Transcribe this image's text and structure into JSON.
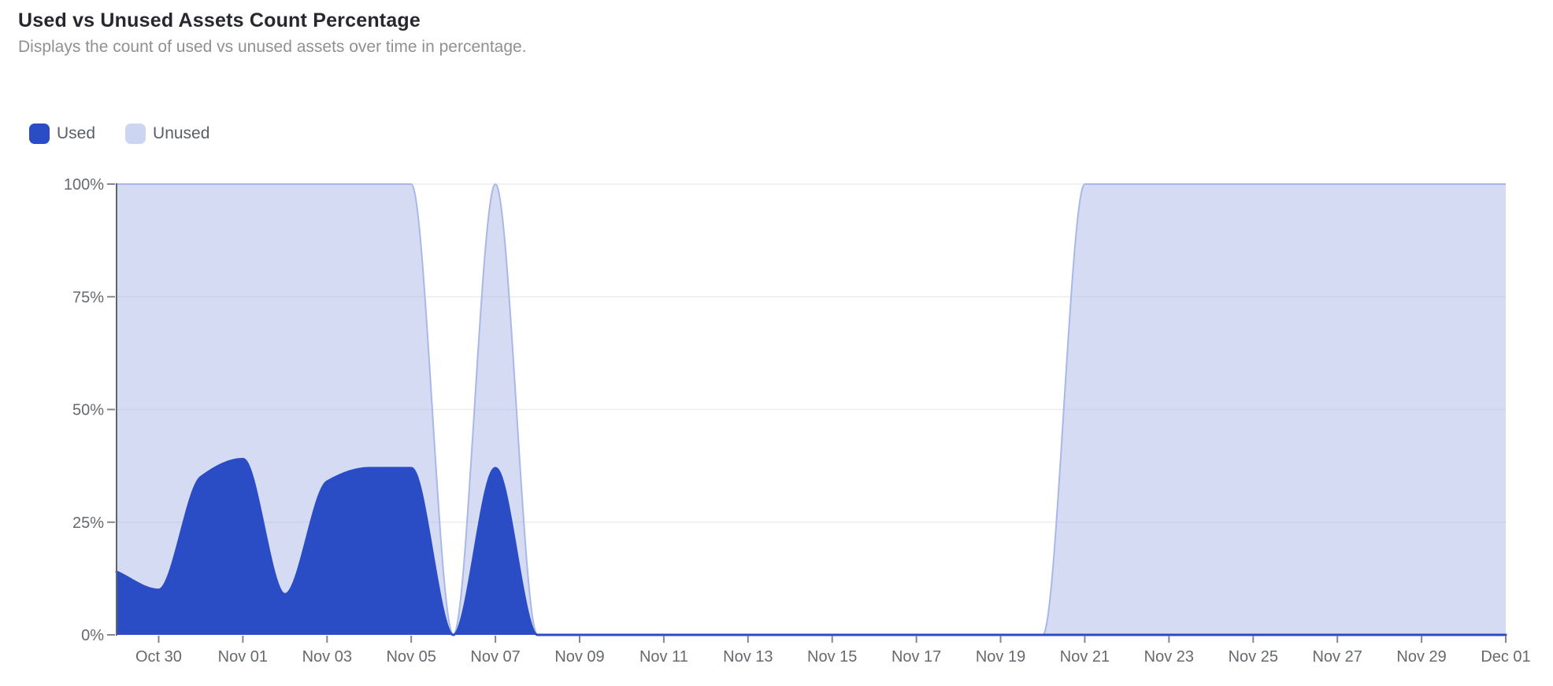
{
  "header": {
    "title": "Used vs Unused Assets Count Percentage",
    "subtitle": "Displays the count of used vs unused assets over time in percentage."
  },
  "legend": {
    "items": [
      {
        "label": "Used",
        "swatch_color": "#2a4dc6"
      },
      {
        "label": "Unused",
        "swatch_color": "#ccd6f0"
      }
    ]
  },
  "chart_data": {
    "type": "area",
    "stacked": true,
    "curve": "monotone",
    "title": "Used vs Unused Assets Count Percentage",
    "xlabel": "",
    "ylabel": "",
    "ylim": [
      0,
      100
    ],
    "grid": "horizontal",
    "legend_position": "top-left",
    "x": [
      "Oct 29",
      "Oct 30",
      "Oct 31",
      "Nov 01",
      "Nov 02",
      "Nov 03",
      "Nov 04",
      "Nov 05",
      "Nov 06",
      "Nov 07",
      "Nov 08",
      "Nov 09",
      "Nov 10",
      "Nov 11",
      "Nov 12",
      "Nov 13",
      "Nov 14",
      "Nov 15",
      "Nov 16",
      "Nov 17",
      "Nov 18",
      "Nov 19",
      "Nov 20",
      "Nov 21",
      "Nov 22",
      "Nov 23",
      "Nov 24",
      "Nov 25",
      "Nov 26",
      "Nov 27",
      "Nov 28",
      "Nov 29",
      "Nov 30",
      "Dec 01"
    ],
    "series": [
      {
        "name": "Used",
        "color": "#2a4dc6",
        "fill": "#2a4dc6",
        "values": [
          14,
          10,
          35,
          39,
          9,
          34,
          37,
          37,
          0,
          37,
          0,
          0,
          0,
          0,
          0,
          0,
          0,
          0,
          0,
          0,
          0,
          0,
          0,
          0,
          0,
          0,
          0,
          0,
          0,
          0,
          0,
          0,
          0,
          0
        ]
      },
      {
        "name": "Unused",
        "color": "#a9b8e6",
        "fill": "rgba(169,184,230,0.5)",
        "values": [
          86,
          90,
          65,
          61,
          91,
          66,
          63,
          63,
          0,
          63,
          0,
          0,
          0,
          0,
          0,
          0,
          0,
          0,
          0,
          0,
          0,
          0,
          0,
          100,
          100,
          100,
          100,
          100,
          100,
          100,
          100,
          100,
          100,
          100
        ]
      }
    ],
    "yticks": [
      {
        "value": 0,
        "label": "0%"
      },
      {
        "value": 25,
        "label": "25%"
      },
      {
        "value": 50,
        "label": "50%"
      },
      {
        "value": 75,
        "label": "75%"
      },
      {
        "value": 100,
        "label": "100%"
      }
    ],
    "xticks": [
      "Oct 30",
      "Nov 01",
      "Nov 03",
      "Nov 05",
      "Nov 07",
      "Nov 09",
      "Nov 11",
      "Nov 13",
      "Nov 15",
      "Nov 17",
      "Nov 19",
      "Nov 21",
      "Nov 23",
      "Nov 25",
      "Nov 27",
      "Nov 29",
      "Dec 01"
    ]
  },
  "theme": {
    "background": "#ffffff",
    "title_color": "#26282d",
    "subtitle_color": "#8d9094",
    "legend_text_color": "#5b5f66",
    "grid_color": "#ededee",
    "axis_line_color": "#5f656d",
    "tick_color": "#83868b",
    "tick_label_color": "#66696e"
  }
}
